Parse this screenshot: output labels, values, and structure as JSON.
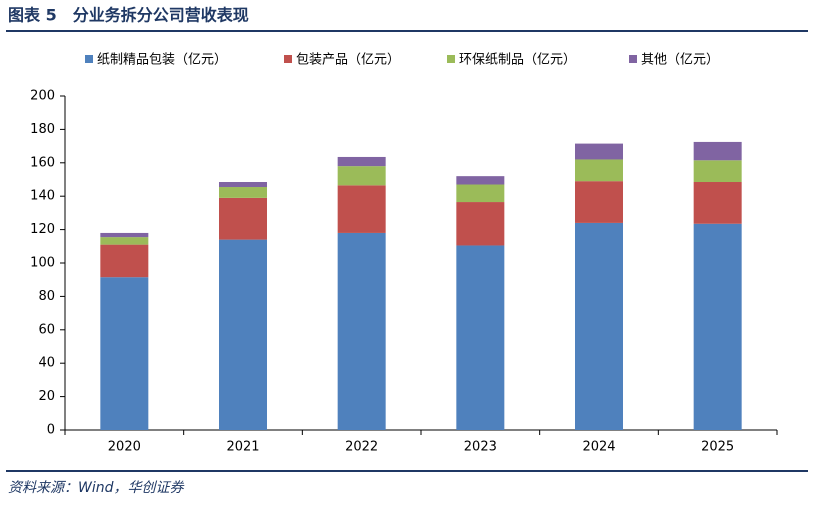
{
  "chart_data": {
    "type": "stacked_bar",
    "title": "图表 5　分业务拆分公司营收表现",
    "source": "资料来源：Wind，华创证券",
    "categories": [
      "2020",
      "2021",
      "2022",
      "2023",
      "2024",
      "2025"
    ],
    "series": [
      {
        "name": "纸制精品包装（亿元）",
        "color": "#4f81bd",
        "values": [
          91.5,
          114,
          118,
          110.5,
          124,
          123.5
        ]
      },
      {
        "name": "包装产品（亿元）",
        "color": "#c0504d",
        "values": [
          19.5,
          25,
          28.5,
          26,
          25,
          25
        ]
      },
      {
        "name": "环保纸制品（亿元）",
        "color": "#9bbb59",
        "values": [
          4.5,
          6.5,
          11.5,
          10.5,
          13,
          13
        ]
      },
      {
        "name": "其他（亿元）",
        "color": "#8064a2",
        "values": [
          2.5,
          3,
          5.5,
          5,
          9.5,
          11
        ]
      }
    ],
    "ylim": [
      0,
      200
    ],
    "yticks": [
      0,
      20,
      40,
      60,
      80,
      100,
      120,
      140,
      160,
      180,
      200
    ]
  }
}
